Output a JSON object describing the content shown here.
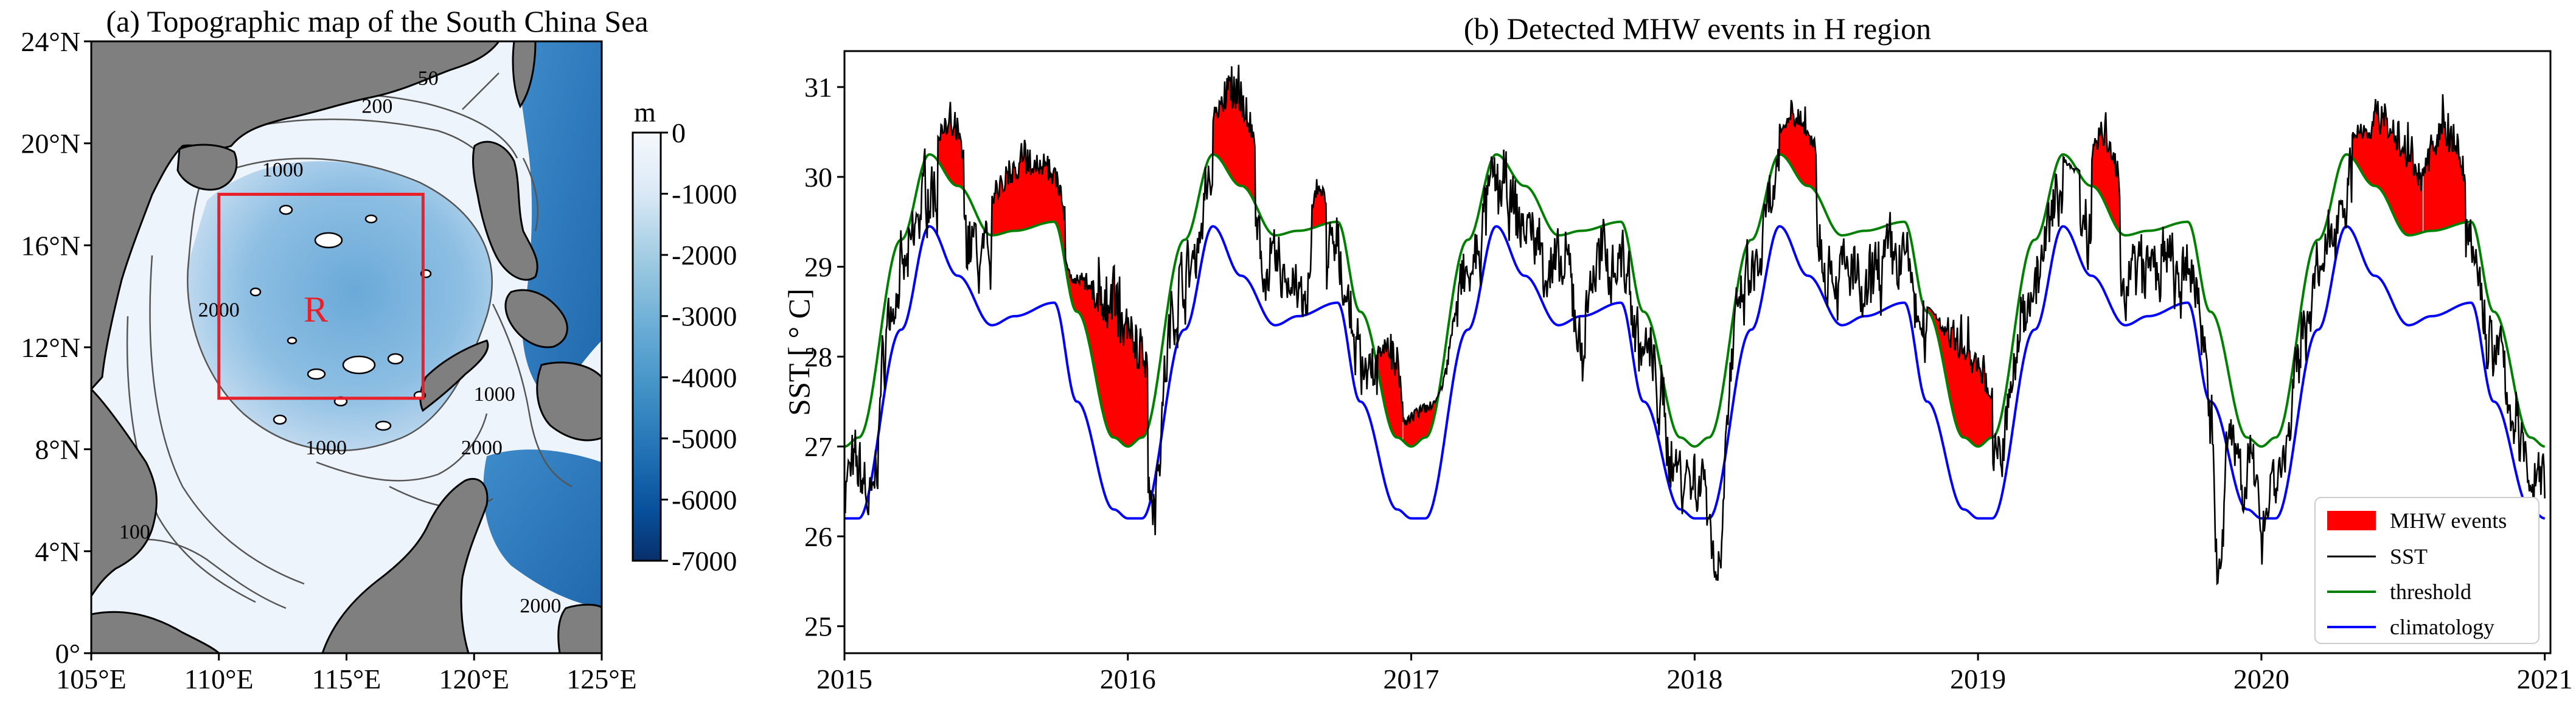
{
  "chart_data": [
    {
      "type": "map",
      "title": "(a) Topographic map of the South China Sea",
      "x_ticks": [
        "105°E",
        "110°E",
        "115°E",
        "120°E",
        "125°E"
      ],
      "y_ticks": [
        "0°",
        "4°N",
        "8°N",
        "12°N",
        "16°N",
        "20°N",
        "24°N"
      ],
      "xlim": [
        105,
        125
      ],
      "ylim": [
        0,
        24
      ],
      "colorbar": {
        "unit": "m",
        "ticks": [
          "0",
          "-1000",
          "-2000",
          "-3000",
          "-4000",
          "-5000",
          "-6000",
          "-7000"
        ],
        "range": [
          -7000,
          0
        ],
        "colors": [
          "#f5f9fd",
          "#08306b"
        ]
      },
      "contour_labels": [
        {
          "text": "50",
          "lon": 118.2,
          "lat": 22.3
        },
        {
          "text": "200",
          "lon": 116.2,
          "lat": 21.2
        },
        {
          "text": "1000",
          "lon": 112.5,
          "lat": 18.7
        },
        {
          "text": "2000",
          "lon": 110.0,
          "lat": 13.2
        },
        {
          "text": "1000",
          "lon": 120.8,
          "lat": 9.9
        },
        {
          "text": "1000",
          "lon": 114.2,
          "lat": 7.8
        },
        {
          "text": "100",
          "lon": 106.7,
          "lat": 4.5
        },
        {
          "text": "2000",
          "lon": 120.3,
          "lat": 7.8
        },
        {
          "text": "2000",
          "lon": 122.6,
          "lat": 1.6
        }
      ],
      "region_box": {
        "label": "R",
        "lon_range": [
          110,
          118
        ],
        "lat_range": [
          10,
          18
        ],
        "color": "#e8202a"
      },
      "land_color": "#7f7f7f"
    },
    {
      "type": "line",
      "title": "(b) Detected MHW events in H region",
      "ylabel": "SST [ ° C]",
      "xlabel": "",
      "x_ticks": [
        "2015",
        "2016",
        "2017",
        "2018",
        "2019",
        "2020",
        "2021"
      ],
      "y_ticks": [
        "25",
        "26",
        "27",
        "28",
        "29",
        "30",
        "31"
      ],
      "xlim": [
        2015,
        2021.02
      ],
      "ylim": [
        24.7,
        31.4
      ],
      "legend_position": "lower-right",
      "series": [
        {
          "name": "MHW events",
          "kind": "fill",
          "color": "#ff0000"
        },
        {
          "name": "SST",
          "kind": "line",
          "color": "#000000"
        },
        {
          "name": "threshold",
          "kind": "line",
          "color": "#008000"
        },
        {
          "name": "climatology",
          "kind": "line",
          "color": "#0000ff"
        }
      ],
      "climatology_keypoints": {
        "x": [
          0.0,
          0.05,
          0.2,
          0.3,
          0.4,
          0.52,
          0.6,
          0.74,
          0.82,
          0.95,
          1.0
        ],
        "y": [
          26.2,
          26.2,
          28.3,
          29.45,
          28.9,
          28.35,
          28.45,
          28.6,
          27.5,
          26.3,
          26.2
        ]
      },
      "threshold_keypoints": {
        "x": [
          0.0,
          0.05,
          0.2,
          0.3,
          0.4,
          0.52,
          0.6,
          0.74,
          0.82,
          0.95,
          1.0
        ],
        "y": [
          27.0,
          27.1,
          29.3,
          30.25,
          29.9,
          29.35,
          29.4,
          29.5,
          28.5,
          27.1,
          27.0
        ]
      },
      "mhw_events": [
        {
          "start": 2015.33,
          "end": 2015.42,
          "peak": 30.8
        },
        {
          "start": 2015.52,
          "end": 2015.78,
          "peak": 30.4
        },
        {
          "start": 2015.78,
          "end": 2016.07,
          "peak": 29.1
        },
        {
          "start": 2016.3,
          "end": 2016.45,
          "peak": 31.3
        },
        {
          "start": 2016.65,
          "end": 2016.7,
          "peak": 30.0
        },
        {
          "start": 2016.88,
          "end": 2016.97,
          "peak": 28.3
        },
        {
          "start": 2016.97,
          "end": 2017.15,
          "peak": 27.5
        },
        {
          "start": 2018.3,
          "end": 2018.43,
          "peak": 30.9
        },
        {
          "start": 2018.82,
          "end": 2019.05,
          "peak": 28.5
        },
        {
          "start": 2019.3,
          "end": 2019.36,
          "peak": 30.0
        },
        {
          "start": 2019.4,
          "end": 2019.5,
          "peak": 30.7
        },
        {
          "start": 2020.32,
          "end": 2020.57,
          "peak": 30.9
        },
        {
          "start": 2020.57,
          "end": 2020.72,
          "peak": 30.9
        }
      ],
      "sst_anomalies": [
        {
          "x": 2015.1,
          "dev": -0.9
        },
        {
          "x": 2015.58,
          "dev": -0.8
        },
        {
          "x": 2016.1,
          "dev": -0.6
        },
        {
          "x": 2016.62,
          "dev": -0.5
        },
        {
          "x": 2017.1,
          "dev": 0.4
        },
        {
          "x": 2017.6,
          "dev": -0.9
        },
        {
          "x": 2018.08,
          "dev": -1.3
        },
        {
          "x": 2018.4,
          "dev": 1.3
        },
        {
          "x": 2018.6,
          "dev": -0.5
        },
        {
          "x": 2018.9,
          "dev": 0.9
        },
        {
          "x": 2019.72,
          "dev": -0.4
        },
        {
          "x": 2019.85,
          "dev": -2.4
        },
        {
          "x": 2020.0,
          "dev": -0.4
        },
        {
          "x": 2020.5,
          "dev": 1.0
        }
      ]
    }
  ]
}
